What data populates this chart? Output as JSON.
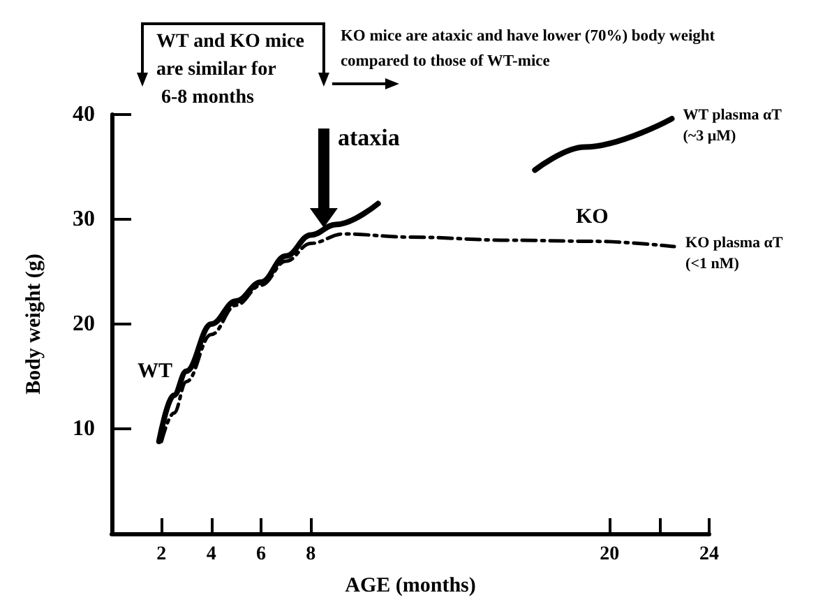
{
  "chart_data": {
    "type": "line",
    "xlabel": "AGE (months)",
    "ylabel": "Body weight (g)",
    "xlim": [
      0,
      24
    ],
    "xticks": [
      2,
      4,
      6,
      8,
      20,
      {
        "value": 22,
        "label": null
      },
      24
    ],
    "ylim": [
      0,
      40
    ],
    "yticks": [
      10,
      20,
      30,
      40
    ],
    "grid": false,
    "legend": false,
    "marker": "none",
    "series": [
      {
        "name": "WT",
        "color": "#000000",
        "line_style": "solid",
        "x": [
          1.9,
          2.5,
          3,
          4,
          5,
          6,
          7,
          8,
          9,
          10.7,
          13,
          17,
          19,
          22.5
        ],
        "values": [
          8.8,
          13.2,
          15.5,
          20,
          22.2,
          24,
          26.5,
          28.5,
          29.5,
          31.5,
          null,
          34.7,
          36.9,
          39.6
        ]
      },
      {
        "name": "KO",
        "color": "#000000",
        "line_style": "dashed",
        "x": [
          2,
          2.5,
          3,
          4,
          5,
          6,
          7,
          8,
          9.3,
          12,
          16,
          19.3,
          22.6
        ],
        "values": [
          8.8,
          11.5,
          14.5,
          19,
          21.8,
          23.7,
          26,
          27.7,
          28.6,
          28.3,
          28,
          27.9,
          27.4
        ]
      }
    ],
    "annotations": [
      "WT and KO mice are similar for 6-8 months",
      "KO mice are ataxic and have lower (70%) body weight compared to those of WT-mice",
      "ataxia",
      {
        "text": "WT plasma αT (~3 μM)",
        "x": 22.5,
        "y": 39.6
      },
      {
        "text": "KO plasma αT (<1 nM)",
        "x": 22.6,
        "y": 27.4
      }
    ]
  }
}
